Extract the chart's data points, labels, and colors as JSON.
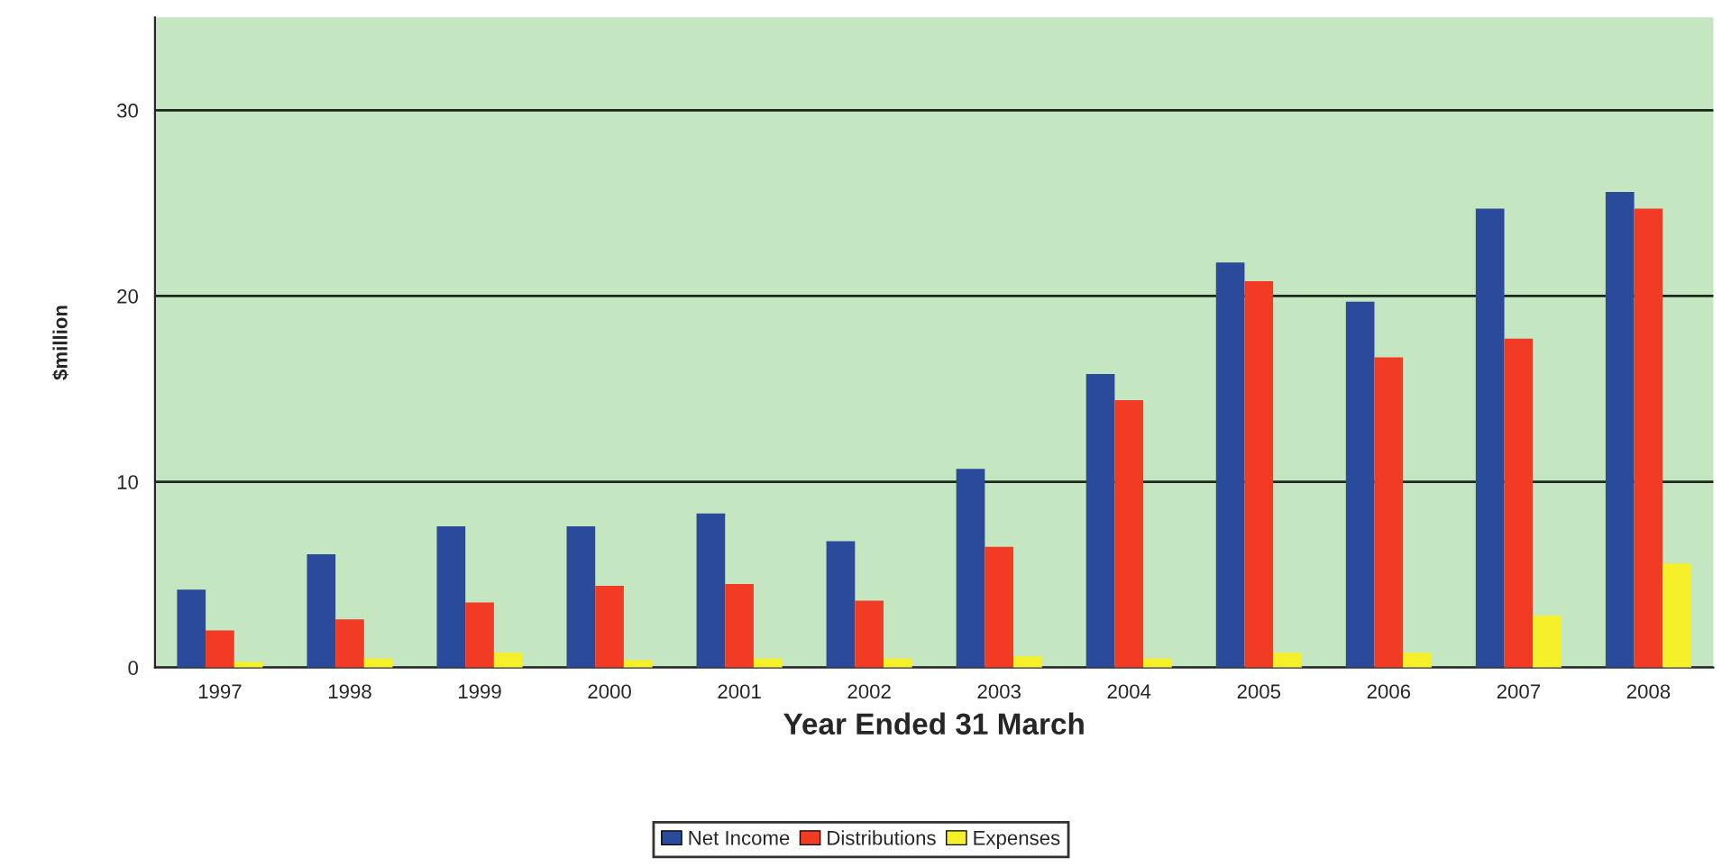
{
  "chart_data": {
    "type": "bar",
    "xlabel": "Year Ended 31 March",
    "ylabel": "$million",
    "categories": [
      "1997",
      "1998",
      "1999",
      "2000",
      "2001",
      "2002",
      "2003",
      "2004",
      "2005",
      "2006",
      "2007",
      "2008"
    ],
    "series": [
      {
        "name": "Net Income",
        "color": "#2a4a9c",
        "values": [
          4.2,
          6.1,
          7.6,
          7.6,
          8.3,
          6.8,
          10.7,
          15.8,
          21.8,
          19.7,
          24.7,
          25.6
        ]
      },
      {
        "name": "Distributions",
        "color": "#f23b24",
        "values": [
          2.0,
          2.6,
          3.5,
          4.4,
          4.5,
          3.6,
          6.5,
          14.4,
          20.8,
          16.7,
          17.7,
          24.7
        ]
      },
      {
        "name": "Expenses",
        "color": "#f5f02a",
        "values": [
          0.3,
          0.5,
          0.8,
          0.4,
          0.5,
          0.5,
          0.6,
          0.5,
          0.8,
          0.8,
          2.8,
          5.6
        ]
      }
    ],
    "ylim": [
      0,
      35
    ],
    "yticks": [
      0,
      10,
      20,
      30
    ],
    "grid": "y",
    "legend": "bottom"
  }
}
